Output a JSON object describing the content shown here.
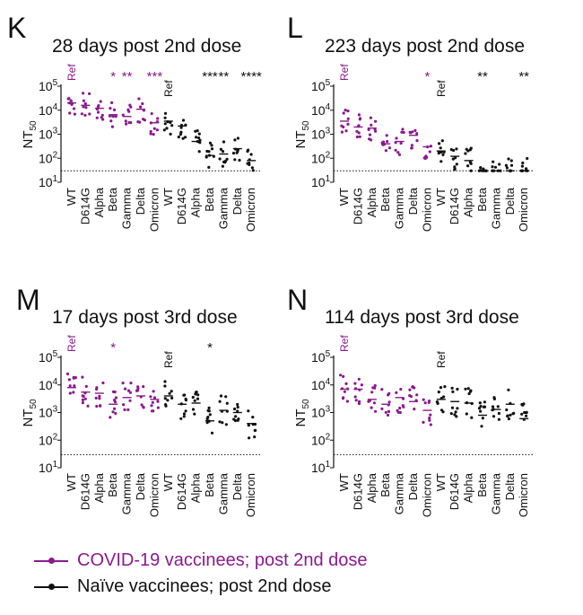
{
  "colors": {
    "vaccinees": "#8a1a8e",
    "naive": "#111111"
  },
  "legend": {
    "vaccinees_label": "COVID-19 vaccinees; post 2nd dose",
    "naive_label": "Naïve vaccinees; post 2nd dose"
  },
  "chart_data": [
    {
      "panel": "K",
      "title": "28 days post 2nd dose",
      "type": "scatter",
      "ylabel": "NT50",
      "yscale": "log",
      "ylim": [
        10,
        100000
      ],
      "yticks": [
        "10^1",
        "10^2",
        "10^3",
        "10^4",
        "10^5"
      ],
      "detection_limit": 30,
      "categories": [
        "WT",
        "D614G",
        "Alpha",
        "Beta",
        "Gamma",
        "Delta",
        "Omicron",
        "WT",
        "D614G",
        "Alpha",
        "Beta",
        "Gamma",
        "Delta",
        "Omicron"
      ],
      "series": [
        {
          "name": "COVID-19 vaccinees; post 2nd dose",
          "group_index": [
            0,
            1,
            2,
            3,
            4,
            5,
            6
          ],
          "medians": [
            20000,
            16000,
            12000,
            6500,
            5500,
            11000,
            3000
          ],
          "annotations": [
            "Ref",
            "",
            "",
            "*",
            "**",
            "",
            "***"
          ]
        },
        {
          "name": "Naïve vaccinees; post 2nd dose",
          "group_index": [
            7,
            8,
            9,
            10,
            11,
            12,
            13
          ],
          "medians": [
            3500,
            2200,
            500,
            130,
            150,
            250,
            80
          ],
          "annotations": [
            "Ref",
            "",
            "",
            "***",
            "**",
            "",
            "****"
          ]
        }
      ]
    },
    {
      "panel": "L",
      "title": "223 days post 2nd dose",
      "type": "scatter",
      "ylabel": "NT50",
      "yscale": "log",
      "ylim": [
        10,
        100000
      ],
      "yticks": [
        "10^1",
        "10^2",
        "10^3",
        "10^4",
        "10^5"
      ],
      "detection_limit": 30,
      "categories": [
        "WT",
        "D614G",
        "Alpha",
        "Beta",
        "Gamma",
        "Delta",
        "Omicron",
        "WT",
        "D614G",
        "Alpha",
        "Beta",
        "Gamma",
        "Delta",
        "Omicron"
      ],
      "series": [
        {
          "name": "COVID-19 vaccinees; post 2nd dose",
          "group_index": [
            0,
            1,
            2,
            3,
            4,
            5,
            6
          ],
          "medians": [
            3500,
            2000,
            1800,
            400,
            500,
            900,
            300
          ],
          "annotations": [
            "Ref",
            "",
            "",
            "",
            "",
            "",
            "*"
          ]
        },
        {
          "name": "Naïve vaccinees; post 2nd dose",
          "group_index": [
            7,
            8,
            9,
            10,
            11,
            12,
            13
          ],
          "medians": [
            200,
            120,
            80,
            30,
            30,
            30,
            30
          ],
          "annotations": [
            "Ref",
            "",
            "",
            "**",
            "",
            "",
            "**"
          ]
        }
      ]
    },
    {
      "panel": "M",
      "title": "17 days post 3rd dose",
      "type": "scatter",
      "ylabel": "NT50",
      "yscale": "log",
      "ylim": [
        10,
        100000
      ],
      "yticks": [
        "10^1",
        "10^2",
        "10^3",
        "10^4",
        "10^5"
      ],
      "detection_limit": 30,
      "categories": [
        "WT",
        "D614G",
        "Alpha",
        "Beta",
        "Gamma",
        "Delta",
        "Omicron",
        "WT",
        "D614G",
        "Alpha",
        "Beta",
        "Gamma",
        "Delta",
        "Omicron"
      ],
      "series": [
        {
          "name": "COVID-19 vaccinees; post 2nd dose",
          "group_index": [
            0,
            1,
            2,
            3,
            4,
            5,
            6
          ],
          "medians": [
            8000,
            5500,
            5000,
            2000,
            3500,
            4000,
            3000
          ],
          "annotations": [
            "Ref",
            "",
            "",
            "*",
            "",
            "",
            ""
          ]
        },
        {
          "name": "Naïve vaccinees; post 2nd dose",
          "group_index": [
            7,
            8,
            9,
            10,
            11,
            12,
            13
          ],
          "medians": [
            4000,
            2000,
            2200,
            500,
            1200,
            1000,
            400
          ],
          "annotations": [
            "Ref",
            "",
            "",
            "*",
            "",
            "",
            ""
          ]
        }
      ]
    },
    {
      "panel": "N",
      "title": "114 days post 3rd dose",
      "type": "scatter",
      "ylabel": "NT50",
      "yscale": "log",
      "ylim": [
        10,
        100000
      ],
      "yticks": [
        "10^1",
        "10^2",
        "10^3",
        "10^4",
        "10^5"
      ],
      "detection_limit": 30,
      "categories": [
        "WT",
        "D614G",
        "Alpha",
        "Beta",
        "Gamma",
        "Delta",
        "Omicron",
        "WT",
        "D614G",
        "Alpha",
        "Beta",
        "Gamma",
        "Delta",
        "Omicron"
      ],
      "series": [
        {
          "name": "COVID-19 vaccinees; post 2nd dose",
          "group_index": [
            0,
            1,
            2,
            3,
            4,
            5,
            6
          ],
          "medians": [
            7000,
            7000,
            3000,
            2000,
            3500,
            2500,
            1200
          ],
          "annotations": [
            "Ref",
            "",
            "",
            "",
            "",
            "",
            ""
          ]
        },
        {
          "name": "Naïve vaccinees; post 2nd dose",
          "group_index": [
            7,
            8,
            9,
            10,
            11,
            12,
            13
          ],
          "medians": [
            3000,
            2500,
            2200,
            800,
            1300,
            2000,
            600
          ],
          "annotations": [
            "Ref",
            "",
            "",
            "",
            "",
            "",
            ""
          ]
        }
      ]
    }
  ]
}
